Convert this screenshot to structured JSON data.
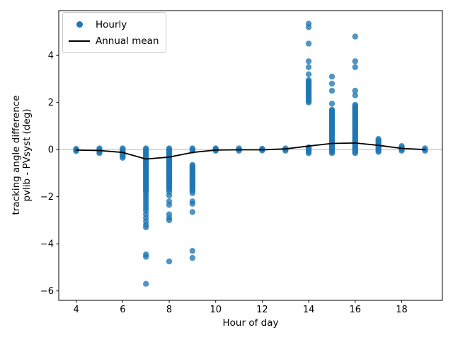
{
  "chart_data": {
    "type": "scatter",
    "title": "",
    "xlabel": "Hour of day",
    "ylabel": "tracking angle difference\npvlib - PVsyst (deg)",
    "ylabel_lines": [
      "tracking angle difference",
      "pvlib - PVsyst (deg)"
    ],
    "xlim": [
      3.25,
      19.75
    ],
    "ylim": [
      -6.4,
      5.9
    ],
    "xticks": [
      4,
      6,
      8,
      10,
      12,
      14,
      16,
      18
    ],
    "yticks": [
      -6,
      -4,
      -2,
      0,
      2,
      4
    ],
    "grid": false,
    "zero_line": {
      "y": 0,
      "color": "#d3d3d3"
    },
    "legend_position": "upper left",
    "legend": [
      {
        "label": "Hourly",
        "handle": "dot",
        "color": "#1f77b4"
      },
      {
        "label": "Annual mean",
        "handle": "line",
        "color": "#000000"
      }
    ],
    "series": [
      {
        "name": "Hourly",
        "type": "scatter",
        "color": "#1f77b4",
        "alpha": 0.78,
        "points_by_hour": {
          "4": [
            -0.06,
            -0.03,
            0.0,
            0.03
          ],
          "5": [
            -0.15,
            -0.1,
            -0.05,
            0.0,
            0.05
          ],
          "6": [
            -0.35,
            -0.3,
            -0.25,
            -0.2,
            -0.15,
            -0.1,
            -0.05,
            0.0,
            0.05
          ],
          "7": [
            0.05,
            0.0,
            -0.05,
            -0.1,
            -0.15,
            -0.2,
            -0.25,
            -0.3,
            -0.35,
            -0.4,
            -0.45,
            -0.5,
            -0.55,
            -0.6,
            -0.65,
            -0.7,
            -0.75,
            -0.8,
            -0.85,
            -0.9,
            -0.95,
            -1.0,
            -1.05,
            -1.1,
            -1.15,
            -1.2,
            -1.25,
            -1.3,
            -1.35,
            -1.4,
            -1.45,
            -1.5,
            -1.55,
            -1.6,
            -1.65,
            -1.7,
            -1.75,
            -1.8,
            -1.9,
            -2.0,
            -2.1,
            -2.2,
            -2.3,
            -2.4,
            -2.5,
            -2.6,
            -2.75,
            -2.9,
            -3.05,
            -3.2,
            -3.3,
            -4.45,
            -4.55,
            -5.7
          ],
          "8": [
            0.05,
            0.0,
            -0.05,
            -0.1,
            -0.15,
            -0.2,
            -0.25,
            -0.3,
            -0.35,
            -0.4,
            -0.45,
            -0.5,
            -0.55,
            -0.6,
            -0.65,
            -0.7,
            -0.75,
            -0.8,
            -0.85,
            -0.9,
            -0.95,
            -1.0,
            -1.05,
            -1.1,
            -1.15,
            -1.2,
            -1.25,
            -1.3,
            -1.35,
            -1.4,
            -1.45,
            -1.5,
            -1.55,
            -1.6,
            -1.65,
            -1.7,
            -1.8,
            -1.95,
            -2.2,
            -2.35,
            -2.75,
            -2.9,
            -3.0,
            -4.75
          ],
          "9": [
            0.05,
            0.0,
            -0.05,
            -0.65,
            -0.7,
            -0.75,
            -0.8,
            -0.85,
            -0.9,
            -0.95,
            -1.0,
            -1.05,
            -1.1,
            -1.15,
            -1.2,
            -1.25,
            -1.3,
            -1.35,
            -1.4,
            -1.45,
            -1.5,
            -1.55,
            -1.6,
            -1.65,
            -1.7,
            -1.75,
            -1.85,
            -2.2,
            -2.3,
            -2.65,
            -4.3,
            -4.6
          ],
          "10": [
            -0.05,
            -0.02,
            0.02,
            0.05
          ],
          "11": [
            -0.05,
            0.0,
            0.05
          ],
          "12": [
            -0.04,
            0.0,
            0.04
          ],
          "13": [
            -0.05,
            0.0,
            0.05
          ],
          "14": [
            -0.15,
            -0.1,
            -0.05,
            0.0,
            0.05,
            0.1,
            2.0,
            2.05,
            2.1,
            2.15,
            2.2,
            2.25,
            2.3,
            2.35,
            2.4,
            2.45,
            2.5,
            2.55,
            2.6,
            2.65,
            2.7,
            2.75,
            2.8,
            2.85,
            2.9,
            2.95,
            3.2,
            3.5,
            3.75,
            4.5,
            5.2,
            5.35
          ],
          "15": [
            -0.15,
            -0.1,
            -0.05,
            0.0,
            0.05,
            0.1,
            0.15,
            0.2,
            0.25,
            0.3,
            0.35,
            0.4,
            0.45,
            0.5,
            0.55,
            0.6,
            0.65,
            0.7,
            0.75,
            0.8,
            0.85,
            0.9,
            0.95,
            1.0,
            1.05,
            1.1,
            1.15,
            1.2,
            1.25,
            1.3,
            1.35,
            1.4,
            1.45,
            1.5,
            1.55,
            1.6,
            1.65,
            1.7,
            1.95,
            2.5,
            2.8,
            3.1
          ],
          "16": [
            -0.15,
            -0.1,
            -0.05,
            0.0,
            0.05,
            0.1,
            0.15,
            0.2,
            0.25,
            0.3,
            0.35,
            0.4,
            0.45,
            0.5,
            0.55,
            0.6,
            0.65,
            0.7,
            0.75,
            0.8,
            0.85,
            0.9,
            0.95,
            1.0,
            1.05,
            1.1,
            1.15,
            1.2,
            1.25,
            1.3,
            1.35,
            1.4,
            1.45,
            1.5,
            1.55,
            1.6,
            1.65,
            1.7,
            1.75,
            1.8,
            1.85,
            1.9,
            2.3,
            2.5,
            3.5,
            3.75,
            4.8
          ],
          "17": [
            -0.1,
            -0.05,
            0.0,
            0.05,
            0.1,
            0.15,
            0.2,
            0.25,
            0.3,
            0.35,
            0.4,
            0.45
          ],
          "18": [
            -0.05,
            0.0,
            0.05,
            0.1,
            0.15
          ],
          "19": [
            -0.05,
            0.0,
            0.05
          ]
        }
      },
      {
        "name": "Annual mean",
        "type": "line",
        "color": "#000000",
        "x": [
          4,
          5,
          6,
          7,
          8,
          9,
          10,
          11,
          12,
          13,
          14,
          15,
          16,
          17,
          18,
          19
        ],
        "y": [
          -0.02,
          -0.04,
          -0.12,
          -0.4,
          -0.32,
          -0.12,
          -0.02,
          -0.01,
          -0.01,
          0.03,
          0.15,
          0.26,
          0.28,
          0.18,
          0.05,
          0.0
        ]
      }
    ]
  }
}
